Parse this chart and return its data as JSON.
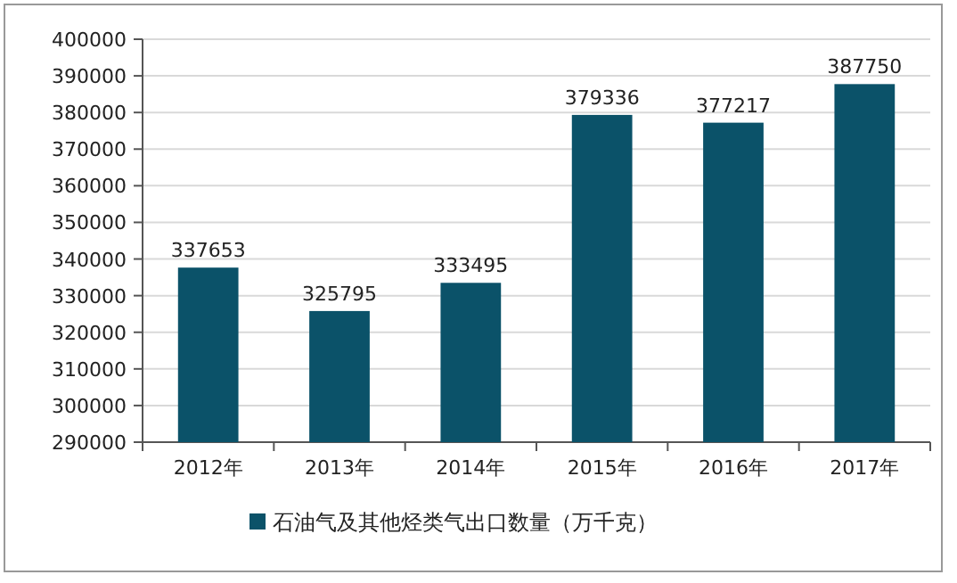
{
  "chart_data": {
    "type": "bar",
    "categories": [
      "2012年",
      "2013年",
      "2014年",
      "2015年",
      "2016年",
      "2017年"
    ],
    "series": [
      {
        "name": "石油气及其他烃类气出口数量（万千克）",
        "color": "#0b5269",
        "values": [
          337653,
          325795,
          333495,
          379336,
          377217,
          387750
        ]
      }
    ],
    "ylim": [
      290000,
      400000
    ],
    "yticks": [
      290000,
      300000,
      310000,
      320000,
      330000,
      340000,
      350000,
      360000,
      370000,
      380000,
      390000,
      400000
    ],
    "grid": "y",
    "legend": "bottom",
    "data_labels": true
  }
}
